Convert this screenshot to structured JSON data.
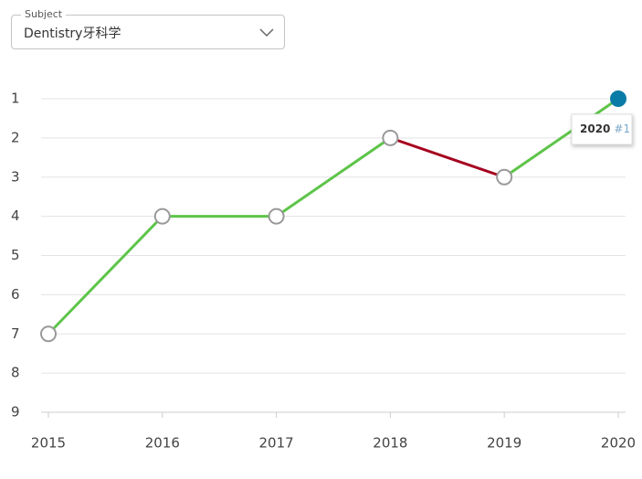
{
  "ui": {
    "dropdown_label": "Subject",
    "dropdown_value": "Dentistry牙科学"
  },
  "chart_data": {
    "type": "line",
    "x": [
      2015,
      2016,
      2017,
      2018,
      2019,
      2020
    ],
    "series": [
      {
        "color": "#5ec44a",
        "decline_color": "#a5001e",
        "values": [
          7,
          4,
          4,
          2,
          3,
          1
        ]
      }
    ],
    "highlight_color": "#0a7ba6",
    "tooltip_label": "#1",
    "xlim": [
      2015,
      2020
    ],
    "xticks": [
      2015,
      2016,
      2017,
      2018,
      2019,
      2020
    ],
    "ylim": [
      9,
      1
    ],
    "yticks": [
      1,
      2,
      3,
      4,
      5,
      6,
      7,
      8,
      9
    ],
    "grid": true
  }
}
